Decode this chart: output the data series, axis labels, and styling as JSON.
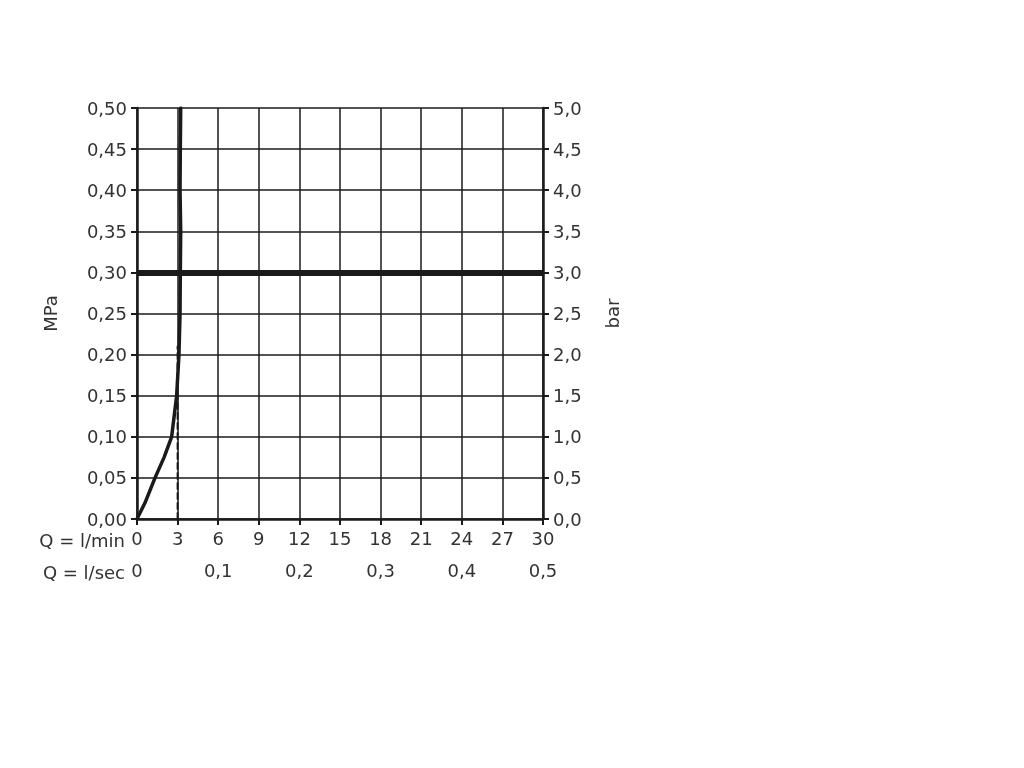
{
  "chart_data": {
    "type": "line",
    "xlabel": "Q = l/min",
    "x2label": "Q = l/sec",
    "ylabel": "MPa",
    "y2label": "bar",
    "xlim": [
      0,
      30
    ],
    "xticks": [
      0,
      3,
      6,
      9,
      12,
      15,
      18,
      21,
      24,
      27,
      30
    ],
    "x2lim": [
      0,
      0.5
    ],
    "x2ticks": [
      0,
      {
        "value": 0.1,
        "label": "0,1"
      },
      {
        "value": 0.2,
        "label": "0,2"
      },
      {
        "value": 0.3,
        "label": "0,3"
      },
      {
        "value": 0.4,
        "label": "0,4"
      },
      {
        "value": 0.5,
        "label": "0,5"
      }
    ],
    "ylim": [
      0,
      0.5
    ],
    "yticks": [
      {
        "value": 0,
        "label": "0,00"
      },
      {
        "value": 0.05,
        "label": "0,05"
      },
      {
        "value": 0.1,
        "label": "0,10"
      },
      {
        "value": 0.15,
        "label": "0,15"
      },
      {
        "value": 0.2,
        "label": "0,20"
      },
      {
        "value": 0.25,
        "label": "0,25"
      },
      {
        "value": 0.3,
        "label": "0,30"
      },
      {
        "value": 0.35,
        "label": "0,35"
      },
      {
        "value": 0.4,
        "label": "0,40"
      },
      {
        "value": 0.45,
        "label": "0,45"
      },
      {
        "value": 0.5,
        "label": "0,50"
      }
    ],
    "y2lim": [
      0,
      5
    ],
    "y2ticks": [
      {
        "value": 0,
        "label": "0,0"
      },
      {
        "value": 0.5,
        "label": "0,5"
      },
      {
        "value": 1,
        "label": "1,0"
      },
      {
        "value": 1.5,
        "label": "1,5"
      },
      {
        "value": 2,
        "label": "2,0"
      },
      {
        "value": 2.5,
        "label": "2,5"
      },
      {
        "value": 3,
        "label": "3,0"
      },
      {
        "value": 3.5,
        "label": "3,5"
      },
      {
        "value": 4,
        "label": "4,0"
      },
      {
        "value": 4.5,
        "label": "4,5"
      },
      {
        "value": 5,
        "label": "5,0"
      }
    ],
    "grid": true,
    "marker": "none",
    "series": [
      {
        "color": "#1a1a1a",
        "line_style": "solid",
        "x": [
          0,
          0.6,
          1.33,
          2.0,
          2.56,
          2.93,
          3.1,
          3.18,
          3.2,
          3.23,
          3.18,
          3.2,
          3.23
        ],
        "values": [
          0,
          0.02,
          0.05,
          0.075,
          0.1,
          0.15,
          0.2,
          0.25,
          0.3,
          0.35,
          0.4,
          0.45,
          0.5
        ]
      },
      {
        "color": "#1a1a1a",
        "line_style": "dashed",
        "x": [
          3,
          3
        ],
        "values": [
          0,
          0.21
        ]
      }
    ],
    "ref_lines": [
      {
        "axis": "y",
        "value": 0.3,
        "color": "#1a1a1a"
      }
    ]
  }
}
